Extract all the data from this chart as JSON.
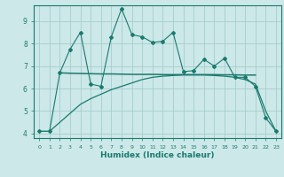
{
  "xlabel": "Humidex (Indice chaleur)",
  "x": [
    0,
    1,
    2,
    3,
    4,
    5,
    6,
    7,
    8,
    9,
    10,
    11,
    12,
    13,
    14,
    15,
    16,
    17,
    18,
    19,
    20,
    21,
    22,
    23
  ],
  "line1": [
    4.1,
    4.1,
    6.7,
    7.75,
    8.5,
    6.2,
    6.1,
    8.3,
    9.55,
    8.4,
    8.3,
    8.05,
    8.1,
    8.5,
    6.75,
    6.8,
    7.3,
    7.0,
    7.35,
    6.5,
    6.5,
    6.1,
    4.7,
    4.1
  ],
  "line2_x": [
    2,
    3,
    4,
    5,
    6,
    7,
    8,
    9,
    10,
    11,
    12,
    13,
    14,
    15,
    16,
    17,
    18,
    19,
    20,
    21
  ],
  "line2_y": [
    6.7,
    6.68,
    6.67,
    6.66,
    6.65,
    6.65,
    6.64,
    6.63,
    6.63,
    6.63,
    6.62,
    6.62,
    6.62,
    6.62,
    6.62,
    6.62,
    6.61,
    6.61,
    6.6,
    6.6
  ],
  "line3_x": [
    0,
    1,
    2,
    3,
    4,
    5,
    6,
    7,
    8,
    9,
    10,
    11,
    12,
    13,
    14,
    15,
    16,
    17,
    18,
    19,
    20,
    21,
    22,
    23
  ],
  "line3_y": [
    4.1,
    4.1,
    4.5,
    4.9,
    5.3,
    5.55,
    5.75,
    5.95,
    6.1,
    6.25,
    6.4,
    6.5,
    6.55,
    6.58,
    6.6,
    6.6,
    6.6,
    6.58,
    6.55,
    6.5,
    6.4,
    6.2,
    5.0,
    4.1
  ],
  "color": "#1a7a6e",
  "bg_color": "#cce8e8",
  "grid_color": "#a0c8c8",
  "ylim_min": 3.8,
  "ylim_max": 9.7,
  "xlim_min": -0.5,
  "xlim_max": 23.5,
  "yticks": [
    4,
    5,
    6,
    7,
    8,
    9
  ],
  "xticks": [
    0,
    1,
    2,
    3,
    4,
    5,
    6,
    7,
    8,
    9,
    10,
    11,
    12,
    13,
    14,
    15,
    16,
    17,
    18,
    19,
    20,
    21,
    22,
    23
  ]
}
